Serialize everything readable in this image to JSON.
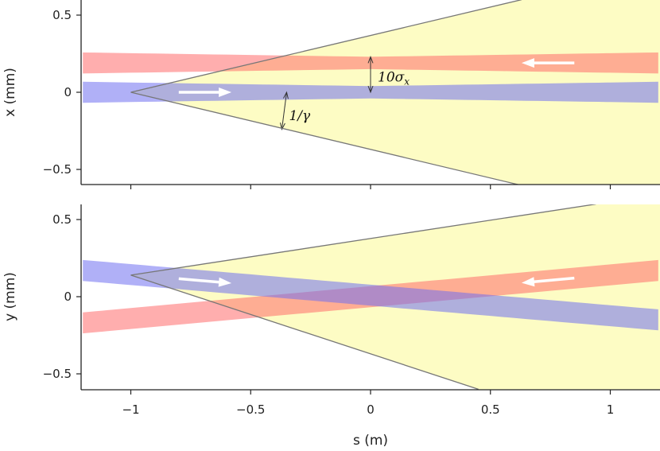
{
  "chart_data": {
    "type": "area",
    "shared_x": {
      "xlabel": "s (m)",
      "xlim": [
        -1.2,
        1.2
      ],
      "xticks": [
        "−1",
        "−0.5",
        "0",
        "0.5",
        "1"
      ],
      "xtick_values": [
        -1,
        -0.5,
        0,
        0.5,
        1
      ]
    },
    "colors": {
      "cone": "#fdfcc4",
      "red_beam": "#ff7070",
      "blue_beam": "#8080ee",
      "arrow": "#ffffff"
    },
    "panels": [
      {
        "id": "top",
        "ylabel": "x (mm)",
        "ylim": [
          -0.6,
          0.6
        ],
        "yticks": [
          "−0.5",
          "0",
          "0.5"
        ],
        "ytick_values": [
          -0.5,
          0,
          0.5
        ],
        "cone": {
          "apex": [
            -1,
            0
          ],
          "upper_end": [
            0.63,
            0.6
          ],
          "lower_end": [
            0.62,
            -0.6
          ]
        },
        "blue_beam": {
          "center": [
            [
              -1.2,
              0
            ],
            [
              1.2,
              0
            ]
          ],
          "half_width": [
            [
              -1.2,
              0.068
            ],
            [
              0,
              0.04
            ],
            [
              1.2,
              0.068
            ]
          ],
          "direction": "right"
        },
        "red_beam": {
          "center": [
            [
              -1.2,
              0.19
            ],
            [
              1.2,
              0.19
            ]
          ],
          "half_width": [
            [
              -1.2,
              0.068
            ],
            [
              0,
              0.04
            ],
            [
              1.2,
              0.068
            ]
          ],
          "direction": "left"
        },
        "annotations": [
          {
            "text": "10σ",
            "sub": "x",
            "at": [
              0.03,
              0.1
            ]
          },
          {
            "text": "1/γ",
            "at": [
              -0.34,
              -0.15
            ]
          }
        ]
      },
      {
        "id": "bottom",
        "ylabel": "y (mm)",
        "ylim": [
          -0.6,
          0.6
        ],
        "yticks": [
          "−0.5",
          "0",
          "0.5"
        ],
        "ytick_values": [
          -0.5,
          0,
          0.5
        ],
        "cone": {
          "apex": [
            -1,
            0.14
          ],
          "upper_end": [
            0.94,
            0.6
          ],
          "lower_end": [
            0.45,
            -0.6
          ]
        },
        "blue_beam": {
          "center": [
            [
              -1.2,
              0.17
            ],
            [
              1.2,
              -0.15
            ]
          ],
          "half_width": [
            [
              -1.2,
              0.068
            ],
            [
              1.2,
              0.068
            ]
          ],
          "direction": "right"
        },
        "red_beam": {
          "center": [
            [
              -1.2,
              -0.17
            ],
            [
              1.2,
              0.17
            ]
          ],
          "half_width": [
            [
              -1.2,
              0.068
            ],
            [
              1.2,
              0.068
            ]
          ],
          "direction": "left"
        },
        "annotations": []
      }
    ]
  }
}
